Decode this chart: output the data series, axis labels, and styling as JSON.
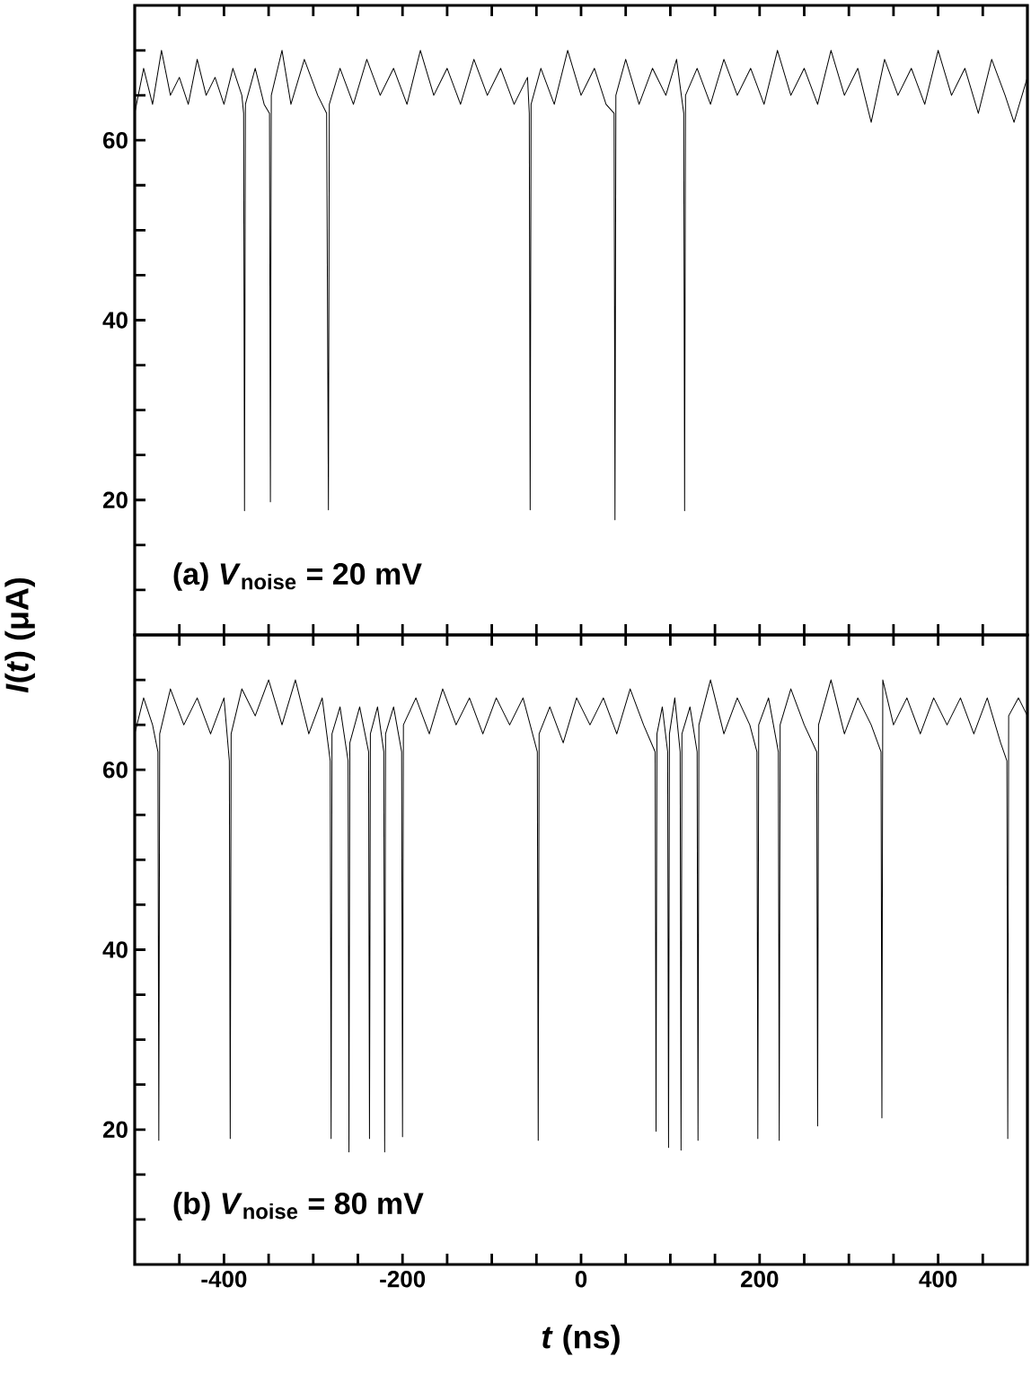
{
  "chart_data": [
    {
      "type": "line",
      "ylabel": "*I*(*t*) (μA)",
      "tick_labels": "y",
      "xlim": [
        -500,
        500
      ],
      "ylim": [
        5,
        75
      ],
      "xticks": [
        {
          "value": -450,
          "label": null
        },
        {
          "value": -400,
          "label": null
        },
        {
          "value": -350,
          "label": null
        },
        {
          "value": -300,
          "label": null
        },
        {
          "value": -250,
          "label": null
        },
        {
          "value": -200,
          "label": null
        },
        {
          "value": -150,
          "label": null
        },
        {
          "value": -100,
          "label": null
        },
        {
          "value": -50,
          "label": null
        },
        {
          "value": 0,
          "label": null
        },
        {
          "value": 50,
          "label": null
        },
        {
          "value": 100,
          "label": null
        },
        {
          "value": 150,
          "label": null
        },
        {
          "value": 200,
          "label": null
        },
        {
          "value": 250,
          "label": null
        },
        {
          "value": 300,
          "label": null
        },
        {
          "value": 350,
          "label": null
        },
        {
          "value": 400,
          "label": null
        },
        {
          "value": 450,
          "label": null
        }
      ],
      "yticks": [
        {
          "value": 10,
          "label": null
        },
        {
          "value": 15,
          "label": null
        },
        20,
        {
          "value": 25,
          "label": null
        },
        {
          "value": 30,
          "label": null
        },
        {
          "value": 35,
          "label": null
        },
        40,
        {
          "value": 45,
          "label": null
        },
        {
          "value": 50,
          "label": null
        },
        {
          "value": 55,
          "label": null
        },
        60,
        {
          "value": 65,
          "label": null
        },
        {
          "value": 70,
          "label": null
        }
      ],
      "annotations": [
        "(a) *V*$_{noise}$ = 20 mV"
      ],
      "series": [
        {
          "color": "#000000",
          "x": [
            -500,
            -490,
            -480,
            -470,
            -460,
            -450,
            -440,
            -430,
            -420,
            -410,
            -400,
            -390,
            -380,
            -378,
            -377,
            -376,
            -365,
            -355,
            -349,
            -348,
            -347,
            -335,
            -325,
            -310,
            -295,
            -285,
            -283,
            -282,
            -270,
            -255,
            -240,
            -225,
            -210,
            -195,
            -180,
            -165,
            -150,
            -135,
            -120,
            -105,
            -90,
            -75,
            -60,
            -58,
            -57,
            -56,
            -45,
            -30,
            -15,
            0,
            15,
            28,
            37,
            38,
            39,
            50,
            65,
            80,
            95,
            107,
            115,
            116,
            117,
            130,
            145,
            160,
            175,
            190,
            205,
            220,
            235,
            250,
            265,
            280,
            295,
            310,
            325,
            340,
            355,
            370,
            385,
            400,
            415,
            430,
            445,
            460,
            475,
            485,
            500
          ],
          "values": [
            63,
            68,
            64,
            70,
            65,
            67,
            64,
            69,
            65,
            67,
            64,
            68,
            65,
            63,
            18.8,
            64,
            68,
            64,
            63,
            19.8,
            65,
            70,
            64,
            69,
            65,
            63,
            18.9,
            64,
            68,
            64,
            69,
            65,
            68,
            64,
            70,
            65,
            68,
            64,
            69,
            65,
            68,
            64,
            67,
            63,
            18.9,
            64,
            68,
            64,
            70,
            65,
            68,
            64,
            63,
            17.8,
            65,
            69,
            64,
            68,
            65,
            69,
            63,
            18.8,
            65,
            68,
            64,
            69,
            65,
            68,
            64,
            70,
            65,
            68,
            64,
            70,
            65,
            68,
            62,
            69,
            65,
            68,
            64,
            70,
            65,
            68,
            63,
            69,
            65,
            62,
            67
          ]
        }
      ]
    },
    {
      "type": "line",
      "xlabel": "*t* (ns)",
      "xlim": [
        -500,
        500
      ],
      "ylim": [
        5,
        75
      ],
      "xticks": [
        {
          "value": -450,
          "label": null
        },
        -400,
        {
          "value": -350,
          "label": null
        },
        {
          "value": -300,
          "label": null
        },
        {
          "value": -250,
          "label": null
        },
        -200,
        {
          "value": -150,
          "label": null
        },
        {
          "value": -100,
          "label": null
        },
        {
          "value": -50,
          "label": null
        },
        0,
        {
          "value": 50,
          "label": null
        },
        {
          "value": 100,
          "label": null
        },
        {
          "value": 150,
          "label": null
        },
        200,
        {
          "value": 250,
          "label": null
        },
        {
          "value": 300,
          "label": null
        },
        {
          "value": 350,
          "label": null
        },
        400,
        {
          "value": 450,
          "label": null
        }
      ],
      "yticks": [
        {
          "value": 10,
          "label": null
        },
        {
          "value": 15,
          "label": null
        },
        20,
        {
          "value": 25,
          "label": null
        },
        {
          "value": 30,
          "label": null
        },
        {
          "value": 35,
          "label": null
        },
        40,
        {
          "value": 45,
          "label": null
        },
        {
          "value": 50,
          "label": null
        },
        {
          "value": 55,
          "label": null
        },
        60,
        {
          "value": 65,
          "label": null
        },
        {
          "value": 70,
          "label": null
        }
      ],
      "annotations": [
        "(b) *V*$_{noise}$ = 80 mV"
      ],
      "series": [
        {
          "color": "#000000",
          "x": [
            -500,
            -490,
            -480,
            -474,
            -473,
            -472,
            -460,
            -445,
            -430,
            -415,
            -400,
            -394,
            -393,
            -392,
            -380,
            -365,
            -350,
            -335,
            -320,
            -305,
            -290,
            -281,
            -280,
            -279,
            -270,
            -261,
            -260,
            -259,
            -248,
            -238,
            -237,
            -236,
            -228,
            -221,
            -220,
            -219,
            -210,
            -201,
            -200,
            -199,
            -185,
            -170,
            -155,
            -140,
            -125,
            -110,
            -95,
            -80,
            -65,
            -49,
            -48,
            -47,
            -35,
            -20,
            -5,
            10,
            25,
            40,
            55,
            70,
            83,
            84,
            85,
            91,
            97,
            98,
            99,
            105,
            111,
            112,
            113,
            122,
            130,
            131,
            132,
            145,
            160,
            175,
            189,
            197,
            198,
            199,
            210,
            221,
            222,
            223,
            235,
            250,
            264,
            265,
            266,
            280,
            295,
            310,
            325,
            336,
            337,
            338,
            350,
            365,
            380,
            395,
            410,
            425,
            440,
            455,
            470,
            477,
            478,
            479,
            490,
            500
          ],
          "values": [
            64,
            68,
            65,
            62,
            18.8,
            64,
            69,
            65,
            68,
            64,
            68,
            61,
            19,
            64,
            69,
            66,
            70,
            65,
            70,
            64,
            68,
            61,
            19,
            64,
            67,
            61,
            17.5,
            63,
            67,
            62,
            19,
            64,
            67,
            62,
            17.5,
            64,
            67,
            62,
            19.2,
            65,
            68,
            64,
            69,
            65,
            68,
            64,
            68,
            65,
            68,
            62,
            18.8,
            64,
            67,
            63,
            68,
            65,
            68,
            64,
            69,
            65,
            62,
            19.8,
            64,
            67,
            62,
            18,
            64,
            68,
            62,
            17.7,
            64,
            67,
            62,
            18.8,
            65,
            70,
            64,
            68,
            65,
            62,
            19,
            65,
            68,
            62,
            18.8,
            65,
            69,
            65,
            62,
            20.4,
            65,
            70,
            64,
            68,
            65,
            62,
            21.3,
            70,
            65,
            68,
            64,
            68,
            65,
            68,
            64,
            68,
            63,
            61,
            19,
            66,
            68,
            66
          ]
        }
      ]
    }
  ]
}
